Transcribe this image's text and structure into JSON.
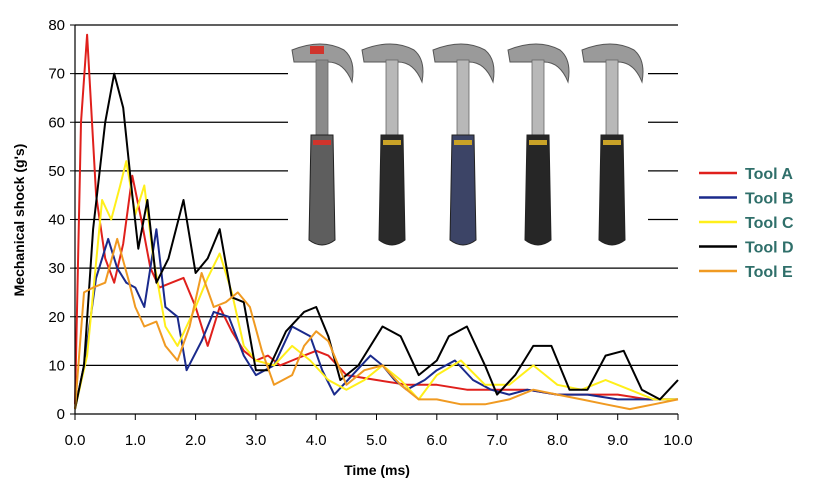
{
  "chart_data": {
    "type": "line",
    "title": "",
    "xlabel": "Time (ms)",
    "ylabel": "Mechanical shock (g's)",
    "xlim": [
      0,
      10
    ],
    "ylim": [
      0,
      80
    ],
    "xticks": [
      0,
      1,
      2,
      3,
      4,
      5,
      6,
      7,
      8,
      9,
      10
    ],
    "xtick_labels": [
      "0.0",
      "1.0",
      "2.0",
      "3.0",
      "4.0",
      "5.0",
      "6.0",
      "7.0",
      "8.0",
      "9.0",
      "10.0"
    ],
    "yticks": [
      0,
      10,
      20,
      30,
      40,
      50,
      60,
      70,
      80
    ],
    "ytick_labels": [
      "0",
      "10",
      "20",
      "30",
      "40",
      "50",
      "60",
      "70",
      "80"
    ],
    "grid": "horizontal",
    "legend_position": "right",
    "series": [
      {
        "name": "Tool A",
        "color": "#e0201c",
        "x": [
          0,
          0.1,
          0.2,
          0.35,
          0.5,
          0.65,
          0.8,
          0.95,
          1.1,
          1.25,
          1.4,
          1.6,
          1.8,
          2.0,
          2.2,
          2.4,
          2.6,
          2.8,
          3.0,
          3.2,
          3.4,
          3.6,
          3.8,
          4.0,
          4.2,
          4.5,
          5.0,
          5.5,
          6.0,
          6.5,
          7.0,
          7.5,
          8.0,
          8.5,
          9.0,
          9.5,
          10.0
        ],
        "y": [
          2,
          60,
          78,
          45,
          32,
          27,
          35,
          49,
          40,
          30,
          26,
          27,
          28,
          22,
          14,
          22,
          17,
          13,
          11,
          12,
          10,
          11,
          12,
          13,
          12,
          8,
          7,
          6,
          6,
          5,
          5,
          5,
          4,
          4,
          4,
          3,
          3
        ]
      },
      {
        "name": "Tool B",
        "color": "#1a2a8c",
        "x": [
          0,
          0.15,
          0.35,
          0.55,
          0.7,
          0.85,
          1.0,
          1.15,
          1.35,
          1.5,
          1.7,
          1.85,
          2.1,
          2.3,
          2.55,
          2.8,
          3.0,
          3.3,
          3.6,
          3.9,
          4.1,
          4.3,
          4.6,
          4.9,
          5.1,
          5.3,
          5.5,
          5.8,
          6.0,
          6.3,
          6.6,
          6.9,
          7.2,
          7.5,
          8.0,
          8.5,
          9.0,
          9.5,
          10.0
        ],
        "y": [
          1,
          10,
          28,
          36,
          30,
          27,
          26,
          22,
          38,
          22,
          20,
          9,
          15,
          21,
          20,
          12,
          8,
          10,
          18,
          16,
          9,
          4,
          8,
          12,
          10,
          7,
          5,
          7,
          9,
          11,
          7,
          5,
          4,
          5,
          4,
          4,
          3,
          3,
          3
        ]
      },
      {
        "name": "Tool C",
        "color": "#ffef1a",
        "x": [
          0,
          0.2,
          0.45,
          0.6,
          0.75,
          0.85,
          1.0,
          1.15,
          1.3,
          1.5,
          1.7,
          2.0,
          2.2,
          2.4,
          2.6,
          2.8,
          3.0,
          3.3,
          3.6,
          3.9,
          4.2,
          4.5,
          4.8,
          5.1,
          5.4,
          5.7,
          6.0,
          6.4,
          6.8,
          7.2,
          7.6,
          8.0,
          8.4,
          8.8,
          9.2,
          9.6,
          10.0
        ],
        "y": [
          1,
          12,
          44,
          40,
          47,
          52,
          41,
          47,
          32,
          18,
          14,
          22,
          28,
          33,
          25,
          14,
          11,
          10,
          14,
          11,
          7,
          5,
          7,
          10,
          7,
          3,
          8,
          11,
          6,
          6,
          10,
          6,
          5,
          7,
          5,
          3,
          3
        ]
      },
      {
        "name": "Tool D",
        "color": "#000000",
        "x": [
          0,
          0.15,
          0.3,
          0.5,
          0.65,
          0.8,
          0.95,
          1.05,
          1.2,
          1.35,
          1.55,
          1.8,
          2.0,
          2.2,
          2.4,
          2.6,
          2.8,
          3.0,
          3.2,
          3.5,
          3.8,
          4.0,
          4.2,
          4.4,
          4.7,
          5.1,
          5.4,
          5.7,
          6.0,
          6.2,
          6.5,
          6.8,
          7.0,
          7.3,
          7.6,
          7.9,
          8.2,
          8.5,
          8.8,
          9.1,
          9.4,
          9.7,
          10.0
        ],
        "y": [
          1,
          10,
          38,
          60,
          70,
          63,
          45,
          34,
          44,
          27,
          32,
          44,
          29,
          32,
          38,
          24,
          23,
          9,
          9,
          17,
          21,
          22,
          16,
          7,
          10,
          18,
          16,
          8,
          11,
          16,
          18,
          10,
          4,
          8,
          14,
          14,
          5,
          5,
          12,
          13,
          5,
          3,
          7
        ]
      },
      {
        "name": "Tool E",
        "color": "#f09a22",
        "x": [
          0,
          0.15,
          0.3,
          0.5,
          0.7,
          0.9,
          1.0,
          1.15,
          1.35,
          1.5,
          1.7,
          1.9,
          2.1,
          2.3,
          2.5,
          2.7,
          2.9,
          3.1,
          3.3,
          3.6,
          3.8,
          4.0,
          4.2,
          4.5,
          4.8,
          5.1,
          5.4,
          5.7,
          6.0,
          6.4,
          6.8,
          7.2,
          7.6,
          8.0,
          8.4,
          8.8,
          9.2,
          9.6,
          10.0
        ],
        "y": [
          1,
          25,
          26,
          27,
          36,
          27,
          22,
          18,
          19,
          14,
          11,
          18,
          29,
          22,
          23,
          25,
          22,
          13,
          6,
          8,
          14,
          17,
          15,
          6,
          9,
          10,
          6,
          3,
          3,
          2,
          2,
          3,
          5,
          4,
          3,
          2,
          1,
          2,
          3
        ]
      }
    ]
  },
  "inset_image": {
    "icon": "hammer-photos",
    "items": [
      "hammer-a",
      "hammer-b",
      "hammer-c",
      "hammer-d",
      "hammer-e"
    ]
  }
}
